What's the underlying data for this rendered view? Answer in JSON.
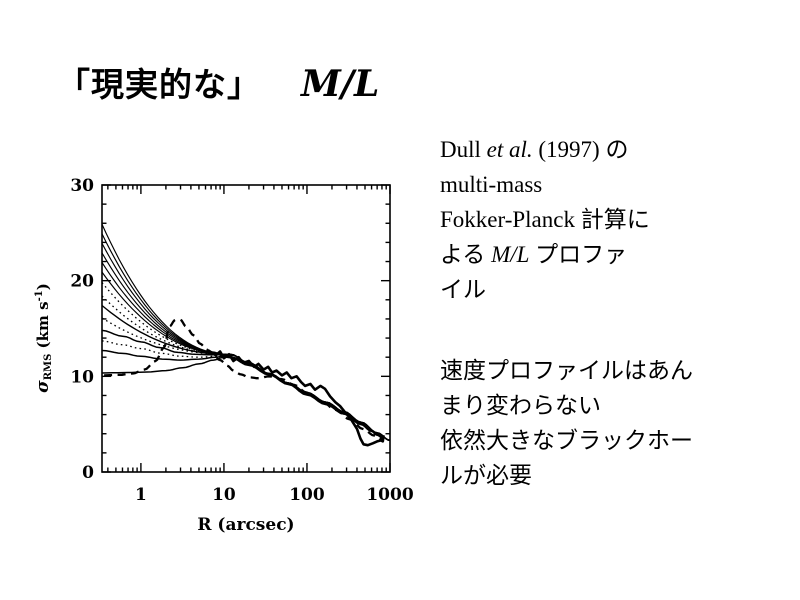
{
  "title": {
    "jp": "「現実的な」",
    "math": "M/L"
  },
  "right_text": {
    "para1": [
      [
        {
          "t": "Dull "
        },
        {
          "t": "et al.",
          "i": true
        },
        {
          "t": " (1997) の"
        }
      ],
      [
        {
          "t": "multi-mass"
        }
      ],
      [
        {
          "t": "Fokker-Planck 計算に"
        }
      ],
      [
        {
          "t": "よる "
        },
        {
          "t": "M/L",
          "i": true
        },
        {
          "t": " プロファ"
        }
      ],
      [
        {
          "t": "イル"
        }
      ]
    ],
    "para2": [
      [
        {
          "t": "速度プロファイルはあん"
        }
      ],
      [
        {
          "t": "まり変わらない"
        }
      ],
      [
        {
          "t": "依然大きなブラックホー"
        }
      ],
      [
        {
          "t": "ルが必要"
        }
      ]
    ]
  },
  "chart_data": {
    "type": "line",
    "title": "",
    "xlabel": "R (arcsec)",
    "ylabel": "sigma_RMS (km s^-1)",
    "ylabel_parts": {
      "sigma": "σ",
      "sub": "RMS",
      "mid": " (km s",
      "sup": "-1",
      "close": ")"
    },
    "x_scale": "log",
    "xlim": [
      0.34,
      1000
    ],
    "ylim": [
      0,
      30
    ],
    "x_ticks": [
      1,
      10,
      100,
      1000
    ],
    "x_tick_labels": [
      "1",
      "10",
      "100",
      "1000"
    ],
    "y_ticks": [
      0,
      10,
      20,
      30
    ],
    "y_tick_labels": [
      "0",
      "10",
      "20",
      "30"
    ],
    "y_minor_step": 2,
    "grid": false,
    "legend": false,
    "ink_color": "#000000",
    "converge": {
      "R": 12,
      "sigma": 12.3,
      "exp": 2.2
    },
    "common_decline": [
      [
        12,
        12.3
      ],
      [
        20,
        11.4
      ],
      [
        35,
        10.3
      ],
      [
        60,
        9.3
      ],
      [
        100,
        8.3
      ],
      [
        170,
        7.3
      ],
      [
        280,
        6.3
      ],
      [
        450,
        5.2
      ],
      [
        700,
        4.1
      ],
      [
        1000,
        3.3
      ]
    ],
    "series": [
      {
        "name": "fan-solid-thin",
        "starts": [
          25.9,
          24.9,
          23.9,
          22.9,
          21.9,
          20.9
        ],
        "style": "solid",
        "width": 1.15
      },
      {
        "name": "fan-dotted",
        "starts": [
          19.8,
          18.4,
          16.1
        ],
        "style": "dotted",
        "width": 1.3
      },
      {
        "name": "fan-solid-mid",
        "starts": [
          17.4
        ],
        "style": "solid",
        "width": 1.4
      },
      {
        "name": "curve-start-14.8",
        "style": "solid",
        "width": 1.5,
        "points": [
          [
            0.34,
            14.8
          ],
          [
            0.6,
            14.2
          ],
          [
            1.0,
            13.6
          ],
          [
            1.7,
            13.0
          ],
          [
            2.8,
            12.5
          ],
          [
            4.5,
            12.3
          ],
          [
            7,
            12.25
          ],
          [
            12,
            12.3
          ]
        ]
      },
      {
        "name": "curve-start-13.7-dotted",
        "style": "dotted",
        "width": 1.3,
        "points": [
          [
            0.34,
            13.7
          ],
          [
            0.6,
            13.3
          ],
          [
            1.0,
            12.9
          ],
          [
            1.8,
            12.4
          ],
          [
            3,
            12.1
          ],
          [
            5,
            12.0
          ],
          [
            8,
            12.1
          ],
          [
            12,
            12.3
          ]
        ]
      },
      {
        "name": "curve-start-12.7",
        "style": "solid",
        "width": 1.5,
        "points": [
          [
            0.34,
            12.7
          ],
          [
            0.6,
            12.4
          ],
          [
            1.0,
            12.1
          ],
          [
            1.8,
            11.8
          ],
          [
            3,
            11.7
          ],
          [
            5,
            11.8
          ],
          [
            8,
            12.0
          ],
          [
            12,
            12.3
          ]
        ]
      },
      {
        "name": "curve-flat-10.4",
        "style": "solid",
        "width": 1.5,
        "points": [
          [
            0.34,
            10.35
          ],
          [
            0.7,
            10.4
          ],
          [
            1.2,
            10.45
          ],
          [
            2,
            10.6
          ],
          [
            3.2,
            10.9
          ],
          [
            5,
            11.3
          ],
          [
            7.5,
            11.7
          ],
          [
            10,
            12.0
          ],
          [
            13,
            12.2
          ]
        ]
      },
      {
        "name": "dashed-model",
        "style": "dashed",
        "width": 2.3,
        "full": true,
        "points": [
          [
            0.36,
            10.1
          ],
          [
            0.55,
            10.15
          ],
          [
            0.8,
            10.3
          ],
          [
            1.1,
            10.7
          ],
          [
            1.5,
            11.6
          ],
          [
            1.9,
            13.0
          ],
          [
            2.2,
            15.2
          ],
          [
            2.6,
            15.9
          ],
          [
            3.0,
            15.9
          ],
          [
            3.5,
            15.2
          ],
          [
            4.3,
            14.3
          ],
          [
            5.2,
            13.4
          ],
          [
            6.2,
            12.8
          ],
          [
            7,
            12.4
          ],
          [
            9,
            11.7
          ],
          [
            11,
            11.1
          ],
          [
            13,
            10.6
          ],
          [
            16,
            10.2
          ],
          [
            20,
            9.9
          ],
          [
            26,
            9.8
          ],
          [
            35,
            10.0
          ],
          [
            50,
            9.7
          ],
          [
            70,
            9.1
          ],
          [
            100,
            8.3
          ],
          [
            150,
            7.4
          ],
          [
            220,
            6.5
          ],
          [
            330,
            5.5
          ],
          [
            470,
            4.5
          ],
          [
            650,
            3.8
          ],
          [
            850,
            3.3
          ]
        ]
      },
      {
        "name": "smooth-thick-model",
        "style": "solid",
        "width": 2.5,
        "full": true,
        "points": [
          [
            7,
            12.5
          ],
          [
            12,
            12.0
          ],
          [
            20,
            11.2
          ],
          [
            35,
            10.2
          ],
          [
            60,
            9.2
          ],
          [
            100,
            8.1
          ],
          [
            170,
            7.1
          ],
          [
            280,
            6.1
          ],
          [
            450,
            5.0
          ],
          [
            600,
            4.3
          ],
          [
            700,
            3.9
          ],
          [
            820,
            3.6
          ]
        ]
      },
      {
        "name": "observed-jagged",
        "style": "solid",
        "width": 2.6,
        "full": true,
        "jagged": true,
        "points": [
          [
            6.5,
            12.7
          ],
          [
            8,
            12.2
          ],
          [
            9,
            12.6
          ],
          [
            10,
            11.9
          ],
          [
            11.5,
            12.3
          ],
          [
            13,
            11.6
          ],
          [
            15,
            12.0
          ],
          [
            17,
            11.4
          ],
          [
            20,
            11.6
          ],
          [
            23,
            11.0
          ],
          [
            26,
            11.3
          ],
          [
            30,
            10.7
          ],
          [
            34,
            11.0
          ],
          [
            38,
            10.4
          ],
          [
            43,
            10.6
          ],
          [
            50,
            10.1
          ],
          [
            57,
            10.4
          ],
          [
            65,
            9.8
          ],
          [
            75,
            10.0
          ],
          [
            85,
            9.4
          ],
          [
            95,
            9.0
          ],
          [
            110,
            9.2
          ],
          [
            125,
            8.6
          ],
          [
            145,
            9.0
          ],
          [
            165,
            8.7
          ],
          [
            190,
            7.9
          ],
          [
            220,
            7.3
          ],
          [
            250,
            6.9
          ],
          [
            290,
            6.2
          ],
          [
            340,
            5.5
          ],
          [
            400,
            4.5
          ],
          [
            440,
            3.5
          ],
          [
            480,
            2.9
          ],
          [
            540,
            2.8
          ],
          [
            620,
            3.0
          ],
          [
            700,
            3.2
          ],
          [
            780,
            3.3
          ],
          [
            820,
            3.2
          ],
          [
            835,
            3.85
          ]
        ]
      }
    ]
  }
}
